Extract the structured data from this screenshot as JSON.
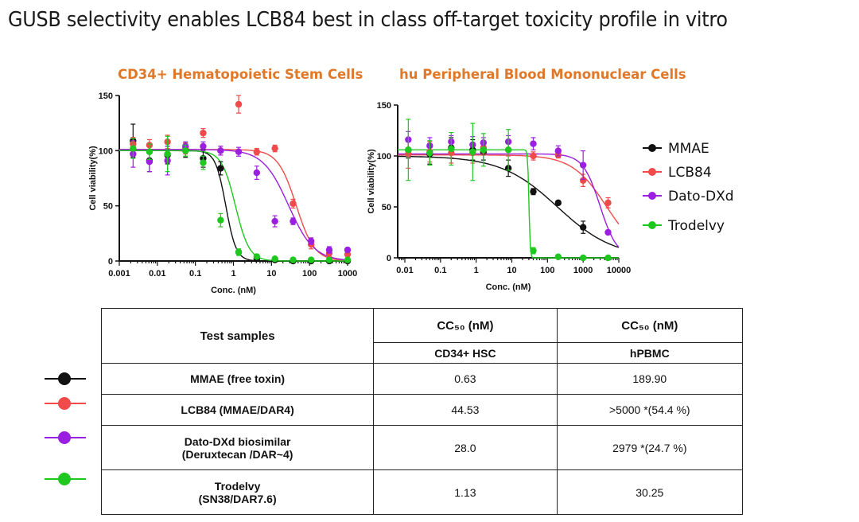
{
  "page_title": "GUSB selectivity enables LCB84 best in class off-target toxicity profile in vitro",
  "colors": {
    "MMAE": "#111111",
    "LCB84": "#f04a4a",
    "Dato-DXd": "#9a1fe0",
    "Trodelvy": "#1fc81f",
    "title_accent": "#e0782a"
  },
  "chart_data": [
    {
      "type": "line",
      "title": "CD34+ Hematopoietic Stem Cells",
      "xlabel": "Conc. (nM)",
      "ylabel": "Cell viability(%)",
      "xscale": "log",
      "xlim": [
        0.001,
        1000
      ],
      "ylim": [
        0,
        150
      ],
      "xticks": [
        "0.001",
        "0.01",
        "0.1",
        "1",
        "10",
        "100",
        "1000"
      ],
      "yticks": [
        "0",
        "50",
        "100",
        "150"
      ],
      "series": [
        {
          "name": "MMAE",
          "color": "#111111",
          "cc50": 0.63,
          "points": [
            [
              0.0023,
              109
            ],
            [
              0.0062,
              91
            ],
            [
              0.0185,
              96
            ],
            [
              0.055,
              100
            ],
            [
              0.16,
              93
            ],
            [
              0.46,
              84
            ],
            [
              1.37,
              8
            ],
            [
              4.1,
              2
            ],
            [
              12.3,
              1
            ],
            [
              37,
              0
            ],
            [
              110,
              0
            ],
            [
              330,
              0
            ],
            [
              1000,
              0
            ]
          ],
          "err": [
            15,
            10,
            8,
            6,
            8,
            6,
            1,
            1,
            1,
            0,
            0,
            0,
            0
          ]
        },
        {
          "name": "LCB84",
          "color": "#f04a4a",
          "cc50": 44.53,
          "points": [
            [
              0.0023,
              106
            ],
            [
              0.0062,
              105
            ],
            [
              0.0185,
              108
            ],
            [
              0.055,
              102
            ],
            [
              0.16,
              116
            ],
            [
              0.46,
              100
            ],
            [
              1.37,
              142
            ],
            [
              4.1,
              99
            ],
            [
              12.3,
              102
            ],
            [
              37,
              52
            ],
            [
              110,
              15
            ],
            [
              330,
              7
            ],
            [
              1000,
              6
            ]
          ],
          "err": [
            6,
            5,
            6,
            5,
            4,
            4,
            8,
            3,
            3,
            4,
            4,
            3,
            2
          ]
        },
        {
          "name": "Dato-DXd",
          "color": "#9a1fe0",
          "cc50": 28.0,
          "points": [
            [
              0.0023,
              97
            ],
            [
              0.0062,
              90
            ],
            [
              0.0185,
              91
            ],
            [
              0.055,
              104
            ],
            [
              0.16,
              104
            ],
            [
              0.46,
              100
            ],
            [
              1.37,
              99
            ],
            [
              4.1,
              80
            ],
            [
              12.3,
              36
            ],
            [
              37,
              36
            ],
            [
              110,
              18
            ],
            [
              330,
              10
            ],
            [
              1000,
              10
            ]
          ],
          "err": [
            12,
            9,
            13,
            4,
            4,
            4,
            4,
            6,
            5,
            3,
            3,
            3,
            2
          ]
        },
        {
          "name": "Trodelvy",
          "color": "#1fc81f",
          "cc50": 1.13,
          "points": [
            [
              0.0023,
              102
            ],
            [
              0.0062,
              99
            ],
            [
              0.0185,
              97
            ],
            [
              0.055,
              100
            ],
            [
              0.16,
              89
            ],
            [
              0.46,
              37
            ],
            [
              1.37,
              8
            ],
            [
              4.1,
              4
            ],
            [
              12.3,
              2
            ],
            [
              37,
              1
            ],
            [
              110,
              1
            ],
            [
              330,
              1
            ],
            [
              1000,
              1
            ]
          ],
          "err": [
            9,
            7,
            16,
            5,
            6,
            6,
            3,
            2,
            1,
            0,
            0,
            0,
            0
          ]
        }
      ]
    },
    {
      "type": "line",
      "title": "hu Peripheral Blood Mononuclear Cells",
      "xlabel": "Conc. (nM)",
      "ylabel": "Cell viability(%)",
      "xscale": "log",
      "xlim": [
        0.0063,
        10000
      ],
      "ylim": [
        0,
        150
      ],
      "xticks": [
        "0.01",
        "0.1",
        "1",
        "10",
        "100",
        "1000",
        "10000"
      ],
      "yticks": [
        "0",
        "50",
        "100",
        "150"
      ],
      "series": [
        {
          "name": "MMAE",
          "color": "#111111",
          "cc50": 189.9,
          "points": [
            [
              0.0125,
              106
            ],
            [
              0.05,
              102
            ],
            [
              0.2,
              108
            ],
            [
              0.8,
              106
            ],
            [
              1.6,
              104
            ],
            [
              8,
              88
            ],
            [
              40,
              65
            ],
            [
              200,
              54
            ],
            [
              1000,
              30
            ],
            [
              5000,
              null
            ]
          ],
          "err": [
            8,
            10,
            10,
            10,
            8,
            8,
            3,
            2,
            6,
            0
          ]
        },
        {
          "name": "LCB84",
          "color": "#f04a4a",
          "cc50": ">5000",
          "points": [
            [
              0.0125,
              102
            ],
            [
              0.05,
              104
            ],
            [
              0.2,
              103
            ],
            [
              0.8,
              103
            ],
            [
              1.6,
              108
            ],
            [
              8,
              106
            ],
            [
              40,
              100
            ],
            [
              200,
              101
            ],
            [
              1000,
              76
            ],
            [
              5000,
              54
            ]
          ],
          "err": [
            14,
            10,
            10,
            10,
            6,
            6,
            4,
            3,
            6,
            5
          ]
        },
        {
          "name": "Dato-DXd",
          "color": "#9a1fe0",
          "cc50": 2979,
          "points": [
            [
              0.0125,
              116
            ],
            [
              0.05,
              110
            ],
            [
              0.2,
              114
            ],
            [
              0.8,
              111
            ],
            [
              1.6,
              113
            ],
            [
              8,
              114
            ],
            [
              40,
              112
            ],
            [
              200,
              105
            ],
            [
              1000,
              91
            ],
            [
              5000,
              25
            ]
          ],
          "err": [
            8,
            8,
            6,
            8,
            5,
            6,
            6,
            5,
            14,
            2
          ]
        },
        {
          "name": "Trodelvy",
          "color": "#1fc81f",
          "cc50": 30.25,
          "points": [
            [
              0.0125,
              106
            ],
            [
              0.05,
              103
            ],
            [
              0.2,
              107
            ],
            [
              0.8,
              104
            ],
            [
              1.6,
              106
            ],
            [
              8,
              106
            ],
            [
              40,
              7
            ],
            [
              200,
              1
            ],
            [
              1000,
              0
            ],
            [
              5000,
              0
            ]
          ],
          "err": [
            30,
            12,
            16,
            28,
            16,
            20,
            3,
            1,
            0,
            0
          ]
        }
      ]
    }
  ],
  "table": {
    "header": {
      "samples": "Test samples",
      "cc50_a": "CC₅₀ (nM)",
      "cc50_b": "CC₅₀ (nM)",
      "col_a": "CD34+ HSC",
      "col_b": "hPBMC"
    },
    "rows": [
      {
        "line1": "MMAE (free toxin)",
        "line2": "",
        "hsc": "0.63",
        "pbmc": "189.90",
        "color": "#111111"
      },
      {
        "line1": "LCB84 (MMAE/DAR4)",
        "line2": "",
        "hsc": "44.53",
        "pbmc": ">5000 *(54.4 %)",
        "color": "#f04a4a"
      },
      {
        "line1": "Dato-DXd biosimilar",
        "line2": "(Deruxtecan /DAR~4)",
        "hsc": "28.0",
        "pbmc": "2979 *(24.7 %)",
        "color": "#9a1fe0"
      },
      {
        "line1": "Trodelvy",
        "line2": "(SN38/DAR7.6)",
        "hsc": "1.13",
        "pbmc": "30.25",
        "color": "#1fc81f"
      }
    ]
  }
}
